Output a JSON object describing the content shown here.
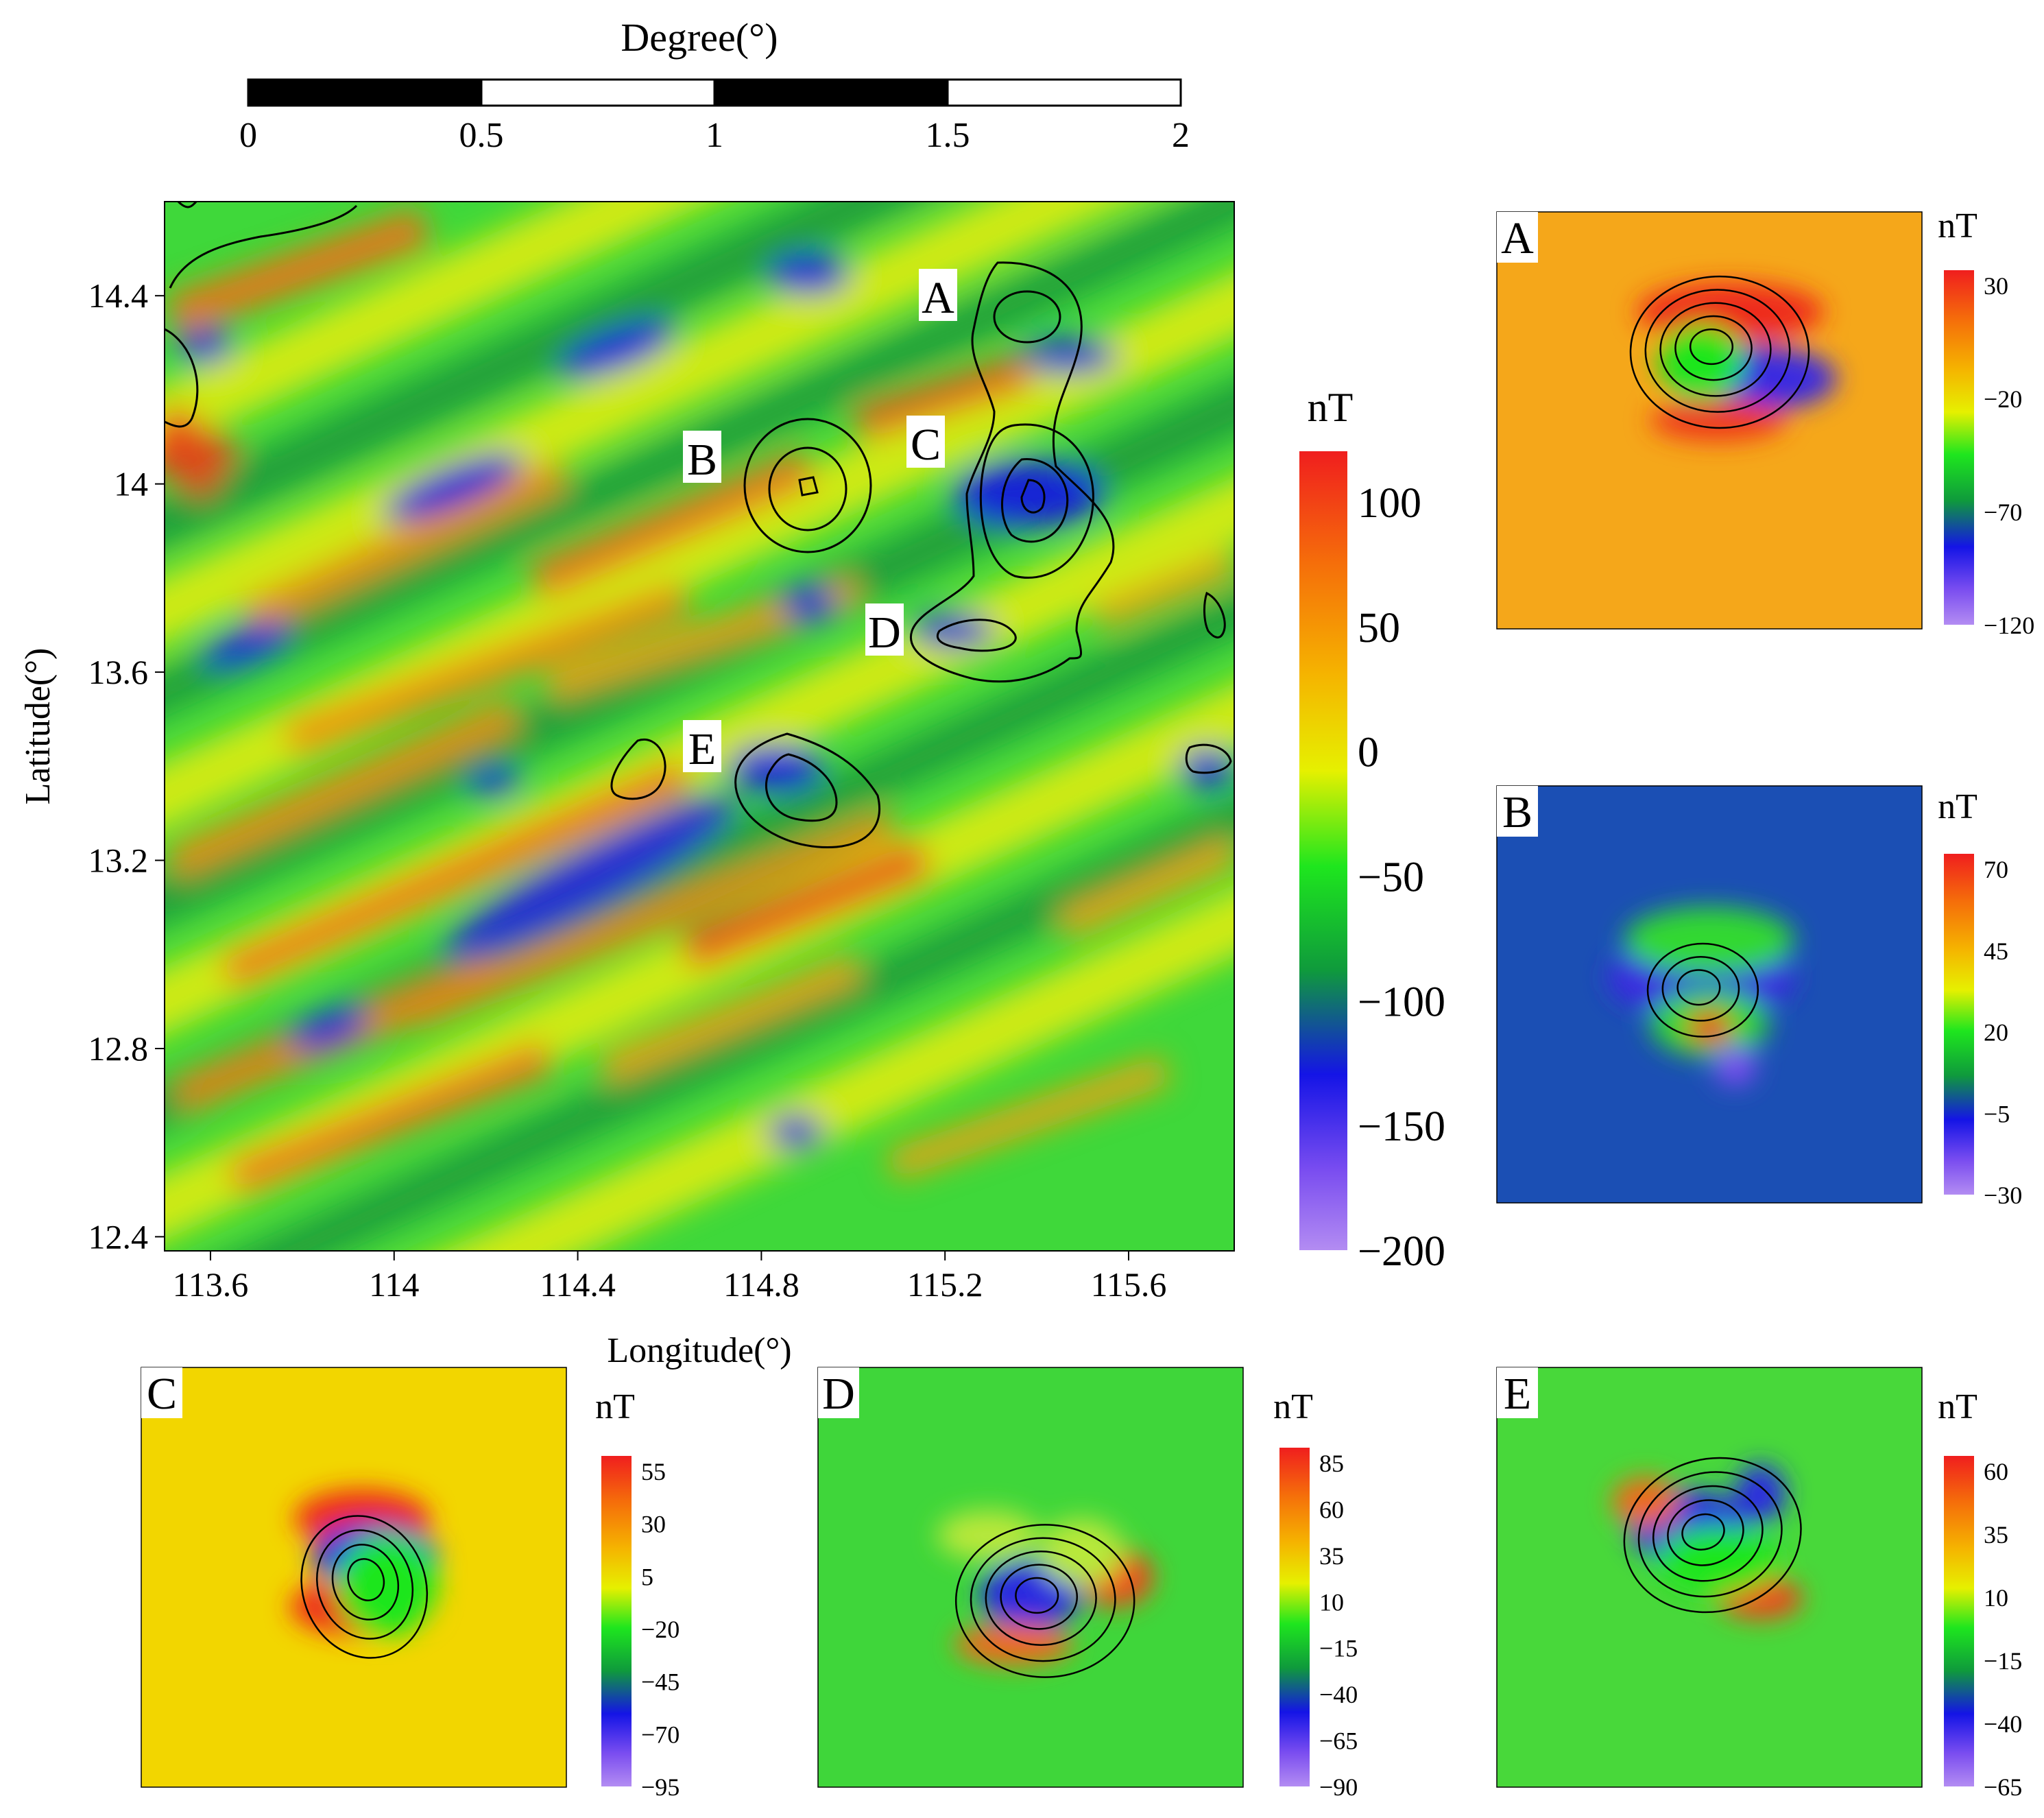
{
  "scale_bar": {
    "title": "Degree(°)",
    "tick_labels": [
      "0",
      "0.5",
      "1",
      "1.5",
      "2"
    ]
  },
  "main_map": {
    "xlabel": "Longitude(°)",
    "ylabel": "Latitude(°)",
    "x_ticks": [
      "113.6",
      "114",
      "114.4",
      "114.8",
      "115.2",
      "115.6"
    ],
    "y_ticks": [
      "14.4",
      "14",
      "13.6",
      "13.2",
      "12.8",
      "12.4"
    ],
    "anomaly_labels": [
      "A",
      "B",
      "C",
      "D",
      "E"
    ]
  },
  "main_colorbar": {
    "unit": "nT",
    "ticks": [
      "100",
      "50",
      "0",
      "−50",
      "−100",
      "−150",
      "−200"
    ]
  },
  "chart_data": [
    {
      "type": "heatmap",
      "panel": "main",
      "xlabel": "Longitude(°)",
      "ylabel": "Latitude(°)",
      "x_ticks": [
        113.6,
        114.0,
        114.4,
        114.8,
        115.2,
        115.6
      ],
      "y_ticks": [
        12.4,
        12.8,
        13.2,
        13.6,
        14.0,
        14.4
      ],
      "xlim": [
        113.5,
        115.83
      ],
      "ylim": [
        12.37,
        14.6
      ],
      "colorbar": {
        "unit": "nT",
        "range": [
          -200,
          120
        ],
        "ticks": [
          100,
          50,
          0,
          -50,
          -100,
          -150,
          -200
        ]
      },
      "labeled_anomalies": [
        {
          "label": "A",
          "lon": 115.38,
          "lat": 14.38
        },
        {
          "label": "B",
          "lon": 114.9,
          "lat": 14.02
        },
        {
          "label": "C",
          "lon": 115.4,
          "lat": 13.99
        },
        {
          "label": "D",
          "lon": 115.3,
          "lat": 13.7
        },
        {
          "label": "E",
          "lon": 114.9,
          "lat": 13.39
        }
      ]
    },
    {
      "type": "heatmap",
      "panel": "A",
      "colorbar": {
        "unit": "nT",
        "ticks": [
          30,
          -20,
          -70,
          -120
        ]
      }
    },
    {
      "type": "heatmap",
      "panel": "B",
      "colorbar": {
        "unit": "nT",
        "ticks": [
          70,
          45,
          20,
          -5,
          -30
        ]
      }
    },
    {
      "type": "heatmap",
      "panel": "C",
      "colorbar": {
        "unit": "nT",
        "ticks": [
          55,
          30,
          5,
          -20,
          -45,
          -70,
          -95
        ]
      }
    },
    {
      "type": "heatmap",
      "panel": "D",
      "colorbar": {
        "unit": "nT",
        "ticks": [
          85,
          60,
          35,
          10,
          -15,
          -40,
          -65,
          -90
        ]
      }
    },
    {
      "type": "heatmap",
      "panel": "E",
      "colorbar": {
        "unit": "nT",
        "ticks": [
          60,
          35,
          10,
          -15,
          -40,
          -65
        ]
      }
    }
  ],
  "insets": [
    {
      "label": "A",
      "unit": "nT",
      "ticks": [
        "30",
        "−20",
        "−70",
        "−120"
      ],
      "background": "#f5a71a"
    },
    {
      "label": "B",
      "unit": "nT",
      "ticks": [
        "70",
        "45",
        "20",
        "−5",
        "−30"
      ],
      "background": "#1b4fb4"
    },
    {
      "label": "C",
      "unit": "nT",
      "ticks": [
        "55",
        "30",
        "5",
        "−20",
        "−45",
        "−70",
        "−95"
      ],
      "background": "#f2d600"
    },
    {
      "label": "D",
      "unit": "nT",
      "ticks": [
        "85",
        "60",
        "35",
        "10",
        "−15",
        "−40",
        "−65",
        "−90"
      ],
      "background": "#3fd63a"
    },
    {
      "label": "E",
      "unit": "nT",
      "ticks": [
        "60",
        "35",
        "10",
        "−15",
        "−40",
        "−65"
      ],
      "background": "#48d83a"
    }
  ]
}
